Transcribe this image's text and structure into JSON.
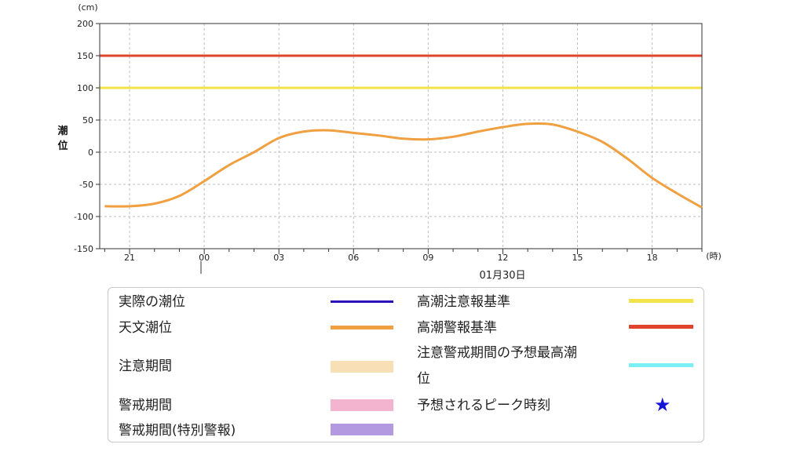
{
  "chart_data": {
    "type": "line",
    "ylabel": "潮位",
    "yunit": "(cm)",
    "xunit": "(時)",
    "date_label": "01月30日",
    "ylim": [
      -150,
      200
    ],
    "yticks": [
      "200",
      "150",
      "100",
      "50",
      "0",
      "-50",
      "-100",
      "-150"
    ],
    "xticks": [
      "21",
      "00",
      "03",
      "06",
      "09",
      "12",
      "15",
      "18"
    ],
    "grid": true,
    "thresholds": [
      {
        "name": "高潮警報基準",
        "value": 150,
        "color": "#e0442c"
      },
      {
        "name": "高潮注意報基準",
        "value": 100,
        "color": "#f3e24a"
      }
    ],
    "series": [
      {
        "name": "天文潮位",
        "color": "#f0a040",
        "x": [
          -4,
          -3,
          -2,
          -1,
          0,
          1,
          2,
          3,
          4,
          5,
          6,
          7,
          8,
          9,
          10,
          11,
          12,
          13,
          14,
          15,
          16,
          17,
          18,
          19,
          20
        ],
        "values": [
          -84,
          -84,
          -80,
          -68,
          -45,
          -20,
          0,
          22,
          32,
          34,
          30,
          26,
          21,
          20,
          24,
          32,
          39,
          44,
          43,
          32,
          16,
          -10,
          -40,
          -64,
          -86
        ]
      }
    ]
  },
  "legend": {
    "items": [
      {
        "label": "実際の潮位",
        "color": "#2a10b8"
      },
      {
        "label": "天文潮位",
        "color": "#f0a040"
      },
      {
        "label": "注意期間",
        "color": "#f8dfb6"
      },
      {
        "label": "警戒期間",
        "color": "#f2b4cf"
      },
      {
        "label": "警戒期間(特別警報)",
        "color": "#b39ae0"
      },
      {
        "label": "高潮注意報基準",
        "color": "#f3e24a"
      },
      {
        "label": "高潮警報基準",
        "color": "#e0442c"
      },
      {
        "label_line1": "注意警戒期間の予想最高潮",
        "label_line2": "位",
        "color": "#7af0f4"
      },
      {
        "label": "予想されるピーク時刻",
        "symbol": "★",
        "color": "#1414d8"
      }
    ]
  }
}
